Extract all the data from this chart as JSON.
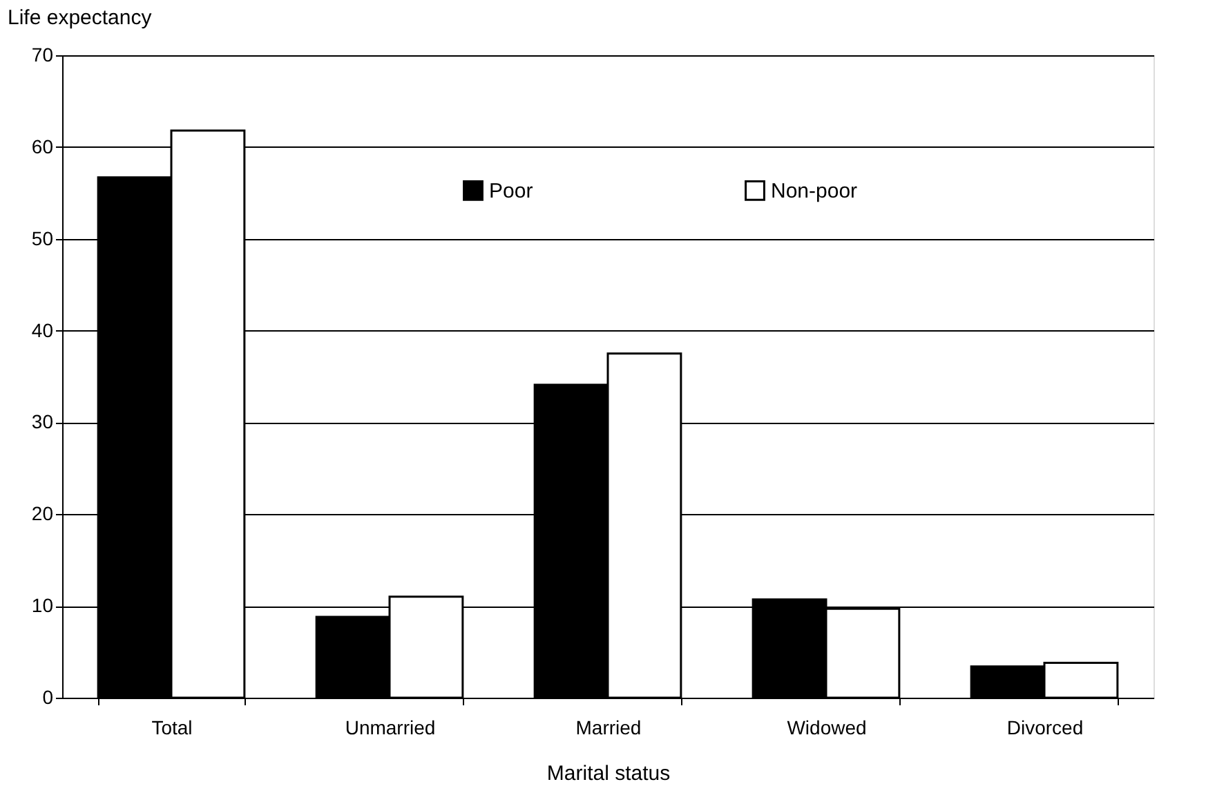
{
  "chart_data": {
    "type": "bar",
    "xlabel": "Marital status",
    "ylabel": "Life expectancy",
    "categories": [
      "Total",
      "Unmarried",
      "Married",
      "Widowed",
      "Divorced"
    ],
    "series": [
      {
        "name": "Poor",
        "color": "#000000",
        "values": [
          56.7,
          8.8,
          34.1,
          10.7,
          3.4
        ]
      },
      {
        "name": "Non-poor",
        "color": "#ffffff",
        "values": [
          61.8,
          11.0,
          37.5,
          9.7,
          3.8
        ]
      }
    ],
    "ylim": [
      0,
      70
    ],
    "yticks": [
      0,
      10,
      20,
      30,
      40,
      50,
      60,
      70
    ],
    "grid": "y",
    "legend": "top"
  }
}
